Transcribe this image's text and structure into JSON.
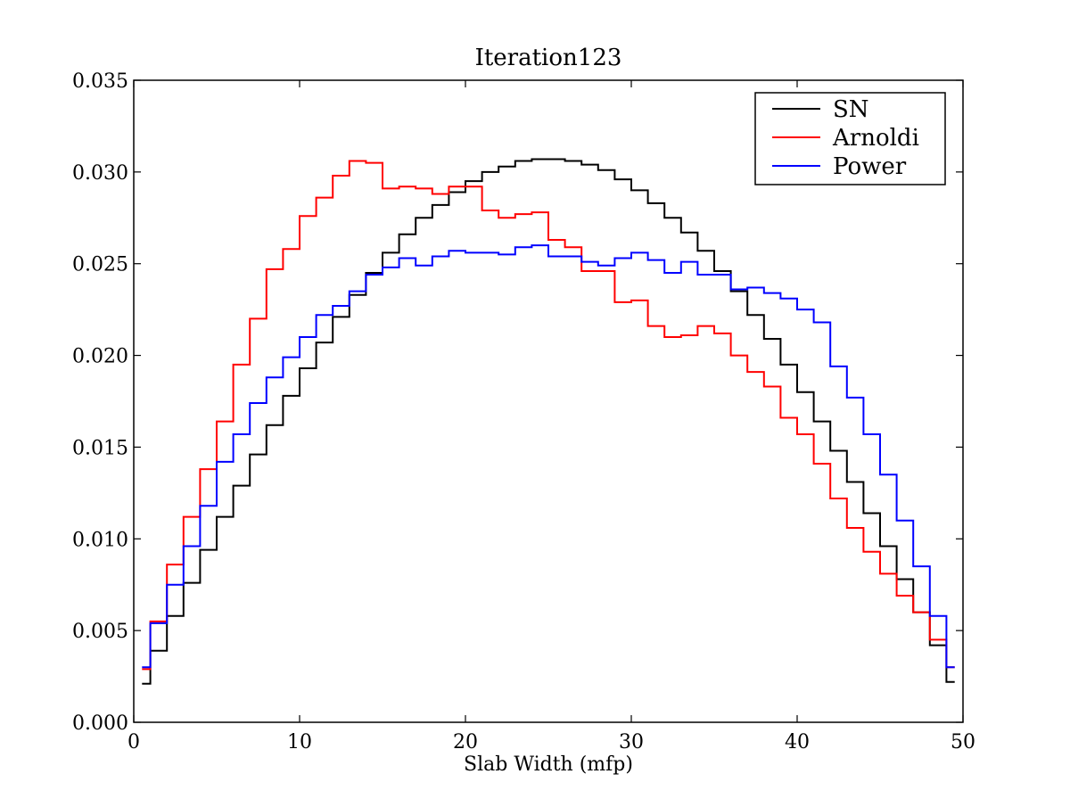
{
  "chart_data": {
    "type": "line",
    "step": true,
    "title": "Iteration123",
    "xlabel": "Slab Width (mfp)",
    "ylabel": "",
    "xlim": [
      0,
      50
    ],
    "ylim": [
      0,
      0.035
    ],
    "grid": false,
    "legend_position": "upper right",
    "xticks": [
      "0",
      "10",
      "20",
      "30",
      "40",
      "50"
    ],
    "yticks": [
      "0.000",
      "0.005",
      "0.010",
      "0.015",
      "0.020",
      "0.025",
      "0.030",
      "0.035"
    ],
    "x": [
      0.5,
      1.5,
      2.5,
      3.5,
      4.5,
      5.5,
      6.5,
      7.5,
      8.5,
      9.5,
      10.5,
      11.5,
      12.5,
      13.5,
      14.5,
      15.5,
      16.5,
      17.5,
      18.5,
      19.5,
      20.5,
      21.5,
      22.5,
      23.5,
      24.5,
      25.5,
      26.5,
      27.5,
      28.5,
      29.5,
      30.5,
      31.5,
      32.5,
      33.5,
      34.5,
      35.5,
      36.5,
      37.5,
      38.5,
      39.5,
      40.5,
      41.5,
      42.5,
      43.5,
      44.5,
      45.5,
      46.5,
      47.5,
      48.5,
      49.5
    ],
    "series": [
      {
        "name": "SN",
        "color": "#000000",
        "values": [
          0.0021,
          0.0039,
          0.0058,
          0.0076,
          0.0094,
          0.0112,
          0.0129,
          0.0146,
          0.0162,
          0.0178,
          0.0193,
          0.0207,
          0.0221,
          0.0233,
          0.0245,
          0.0256,
          0.0266,
          0.0275,
          0.0282,
          0.0289,
          0.0295,
          0.03,
          0.0303,
          0.0306,
          0.0307,
          0.0307,
          0.0306,
          0.0304,
          0.0301,
          0.0296,
          0.029,
          0.0283,
          0.0275,
          0.0267,
          0.0257,
          0.0246,
          0.0235,
          0.0222,
          0.0209,
          0.0195,
          0.018,
          0.0164,
          0.0148,
          0.0131,
          0.0114,
          0.0096,
          0.0078,
          0.006,
          0.0042,
          0.0022
        ]
      },
      {
        "name": "Arnoldi",
        "color": "#ff0000",
        "values": [
          0.0029,
          0.0055,
          0.0086,
          0.0112,
          0.0138,
          0.0164,
          0.0195,
          0.022,
          0.0247,
          0.0258,
          0.0276,
          0.0286,
          0.0298,
          0.0306,
          0.0305,
          0.0291,
          0.0292,
          0.0291,
          0.0288,
          0.0292,
          0.0292,
          0.0279,
          0.0275,
          0.0277,
          0.0278,
          0.0263,
          0.0259,
          0.0246,
          0.0246,
          0.0229,
          0.023,
          0.0216,
          0.021,
          0.0211,
          0.0216,
          0.0212,
          0.02,
          0.0191,
          0.0183,
          0.0166,
          0.0157,
          0.0141,
          0.0122,
          0.0106,
          0.0093,
          0.0081,
          0.0069,
          0.006,
          0.0045,
          0.003
        ]
      },
      {
        "name": "Power",
        "color": "#0000ff",
        "values": [
          0.003,
          0.0054,
          0.0075,
          0.0096,
          0.0118,
          0.0142,
          0.0157,
          0.0174,
          0.0188,
          0.0199,
          0.021,
          0.0222,
          0.0227,
          0.0235,
          0.0244,
          0.0248,
          0.0253,
          0.0249,
          0.0254,
          0.0257,
          0.0256,
          0.0256,
          0.0255,
          0.0259,
          0.026,
          0.0254,
          0.0254,
          0.0251,
          0.0249,
          0.0253,
          0.0256,
          0.0252,
          0.0245,
          0.0251,
          0.0244,
          0.0244,
          0.0236,
          0.0237,
          0.0234,
          0.0231,
          0.0225,
          0.0218,
          0.0194,
          0.0177,
          0.0157,
          0.0135,
          0.011,
          0.0085,
          0.0058,
          0.003
        ]
      }
    ]
  }
}
